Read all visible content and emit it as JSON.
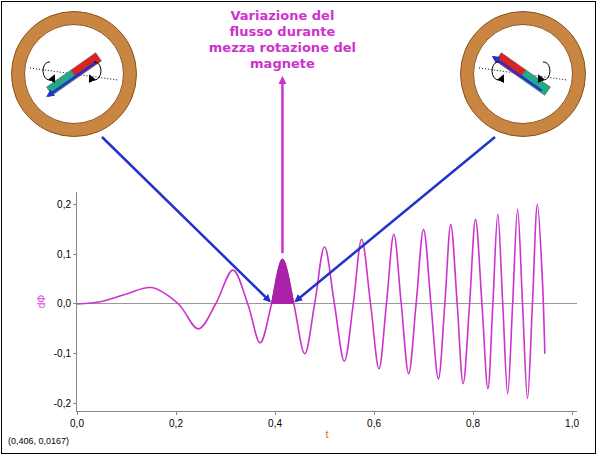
{
  "chart_data": {
    "type": "line",
    "annotation": "Variazione del flusso durante mezza rotazione del magnete",
    "x_label": "t",
    "y_label": "dΦ",
    "readout": "(0,406, 0,0167)",
    "color": "#cc33cc",
    "shaded_color": "#aa22aa",
    "shaded_x": [
      0.393,
      0.438
    ],
    "x": [
      0,
      0.05,
      0.1,
      0.15,
      0.205,
      0.245,
      0.28,
      0.315,
      0.345,
      0.37,
      0.393,
      0.415,
      0.438,
      0.46,
      0.48,
      0.5,
      0.52,
      0.54,
      0.558,
      0.575,
      0.593,
      0.61,
      0.625,
      0.64,
      0.655,
      0.67,
      0.685,
      0.7,
      0.715,
      0.73,
      0.743,
      0.755,
      0.768,
      0.78,
      0.793,
      0.805,
      0.818,
      0.83,
      0.84,
      0.85,
      0.86,
      0.87,
      0.88,
      0.89,
      0.9,
      0.91,
      0.92,
      0.93,
      0.94,
      0.945
    ],
    "values": [
      0,
      0.005,
      0.02,
      0.033,
      0,
      -0.05,
      0,
      0.068,
      0,
      -0.078,
      0,
      0.09,
      0,
      -0.1,
      0,
      0.115,
      0,
      -0.115,
      0,
      0.13,
      0,
      -0.13,
      0,
      0.14,
      0,
      -0.14,
      0,
      0.15,
      0,
      -0.15,
      0,
      0.16,
      0,
      -0.16,
      0,
      0.17,
      0,
      -0.17,
      0,
      0.18,
      0,
      -0.18,
      0,
      0.19,
      0,
      -0.19,
      0,
      0.2,
      0.05,
      -0.1
    ],
    "xlim": [
      0,
      1.01
    ],
    "ylim": [
      -0.215,
      0.225
    ],
    "xticks": [
      {
        "value": 0,
        "label": "0,0"
      },
      {
        "value": 0.2,
        "label": "0,2"
      },
      {
        "value": 0.4,
        "label": "0,4"
      },
      {
        "value": 0.6,
        "label": "0,6"
      },
      {
        "value": 0.8,
        "label": "0,8"
      },
      {
        "value": 1.0,
        "label": "1,0"
      }
    ],
    "yticks": [
      {
        "value": -0.2,
        "label": "-0,2"
      },
      {
        "value": -0.1,
        "label": "-0,1"
      },
      {
        "value": 0,
        "label": "0,0"
      },
      {
        "value": 0.1,
        "label": "0,1"
      },
      {
        "value": 0.2,
        "label": "0,2"
      }
    ],
    "grid": false
  }
}
